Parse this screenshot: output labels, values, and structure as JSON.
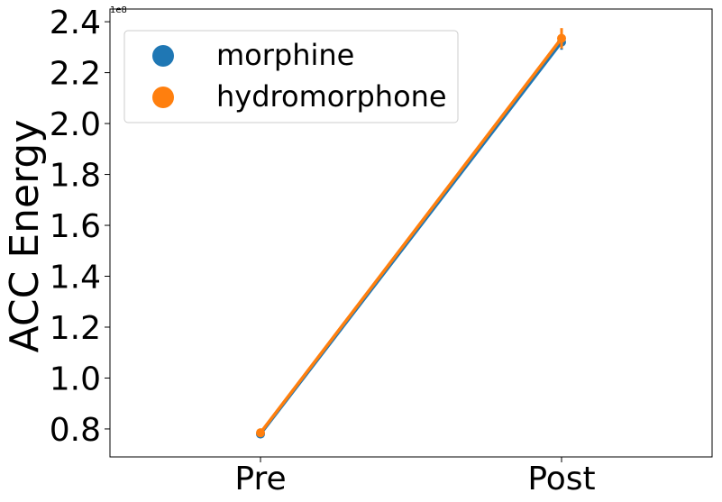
{
  "chart_data": {
    "type": "line",
    "categories": [
      "Pre",
      "Post"
    ],
    "ylabel": "ACC Energy",
    "y_offset_label": "1e8",
    "y_scale": 100000000,
    "ylim": [
      0.69,
      2.45
    ],
    "y_ticks": [
      0.8,
      1.0,
      1.2,
      1.4,
      1.6,
      1.8,
      2.0,
      2.2,
      2.4
    ],
    "y_tick_labels": [
      "0.8",
      "1.0",
      "1.2",
      "1.4",
      "1.6",
      "1.8",
      "2.0",
      "2.2",
      "2.4"
    ],
    "grid": false,
    "legend_position": "top-left",
    "series": [
      {
        "name": "morphine",
        "color": "#1f77b4",
        "values": [
          0.78,
          2.32
        ],
        "error": [
          0.004,
          0.03
        ]
      },
      {
        "name": "hydromorphone",
        "color": "#ff7f0e",
        "values": [
          0.785,
          2.335
        ],
        "error": [
          0.004,
          0.04
        ]
      }
    ]
  }
}
